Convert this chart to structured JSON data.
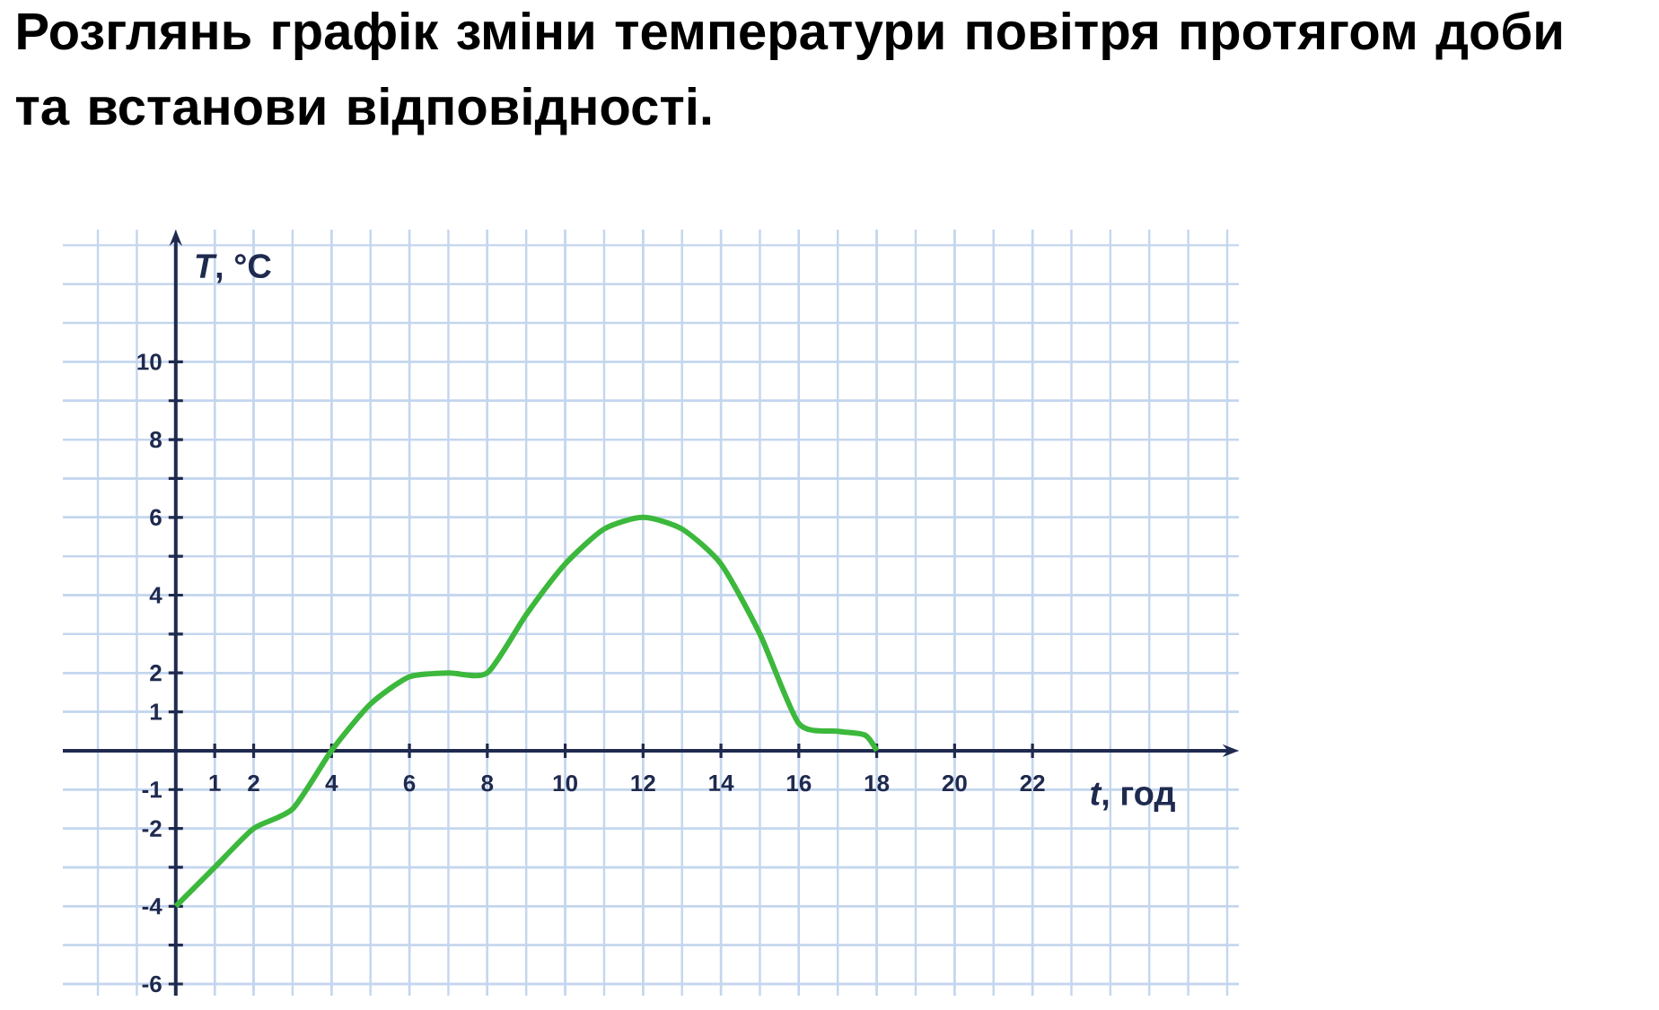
{
  "chart_data": {
    "type": "line",
    "title": "Розглянь графік зміни температури повітря протягом доби та встанови відповідності.",
    "xlabel": "*t*, год",
    "ylabel": "*T*, °C",
    "series": [
      {
        "color": "#3cb83c",
        "x": [
          0,
          1,
          2,
          3,
          4,
          5,
          6,
          7,
          8,
          9,
          10,
          11,
          12,
          13,
          14,
          15,
          16,
          17,
          17.7,
          18
        ],
        "values": [
          -4,
          -3,
          -2,
          -1.5,
          0,
          1.2,
          1.9,
          2,
          2,
          3.5,
          4.8,
          5.7,
          6,
          5.7,
          4.8,
          3,
          0.7,
          0.5,
          0.4,
          0
        ]
      }
    ],
    "xlim": [
      -2.9,
      27.3
    ],
    "ylim": [
      -6.3,
      13.4
    ],
    "xticks": [
      1,
      2,
      4,
      6,
      8,
      10,
      12,
      14,
      16,
      18,
      20,
      22
    ],
    "yticks": [
      -6,
      {
        "value": -5,
        "label": null
      },
      -4,
      {
        "value": -3,
        "label": null
      },
      -2,
      -1,
      1,
      2,
      {
        "value": 3,
        "label": null
      },
      4,
      {
        "value": 5,
        "label": null
      },
      6,
      {
        "value": 7,
        "label": null
      },
      8,
      {
        "value": 9,
        "label": null
      },
      10
    ],
    "grid": true,
    "marker": "none",
    "line_style": "solid"
  }
}
